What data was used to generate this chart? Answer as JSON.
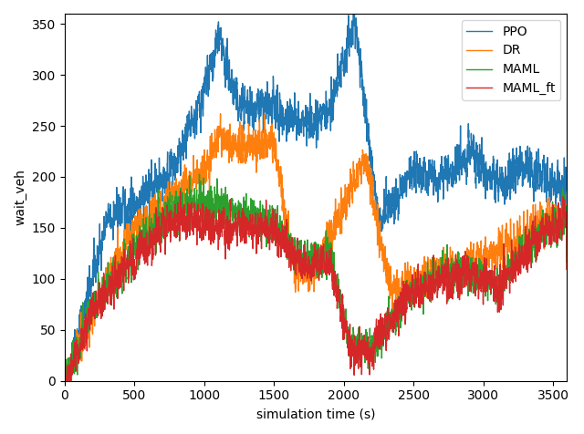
{
  "title": "",
  "xlabel": "simulation time (s)",
  "ylabel": "wait_veh",
  "xlim": [
    0,
    3600
  ],
  "ylim": [
    0,
    360
  ],
  "yticks": [
    0,
    50,
    100,
    150,
    200,
    250,
    300,
    350
  ],
  "xticks": [
    0,
    500,
    1000,
    1500,
    2000,
    2500,
    3000,
    3500
  ],
  "series": {
    "PPO": {
      "color": "#1f77b4",
      "lw": 1.0
    },
    "DR": {
      "color": "#ff7f0e",
      "lw": 1.0
    },
    "MAML": {
      "color": "#2ca02c",
      "lw": 1.0
    },
    "MAML_ft": {
      "color": "#d62728",
      "lw": 1.0
    }
  },
  "legend_loc": "upper right",
  "seed": 42,
  "n_steps": 3600,
  "figsize": [
    6.4,
    4.76
  ],
  "dpi": 100
}
